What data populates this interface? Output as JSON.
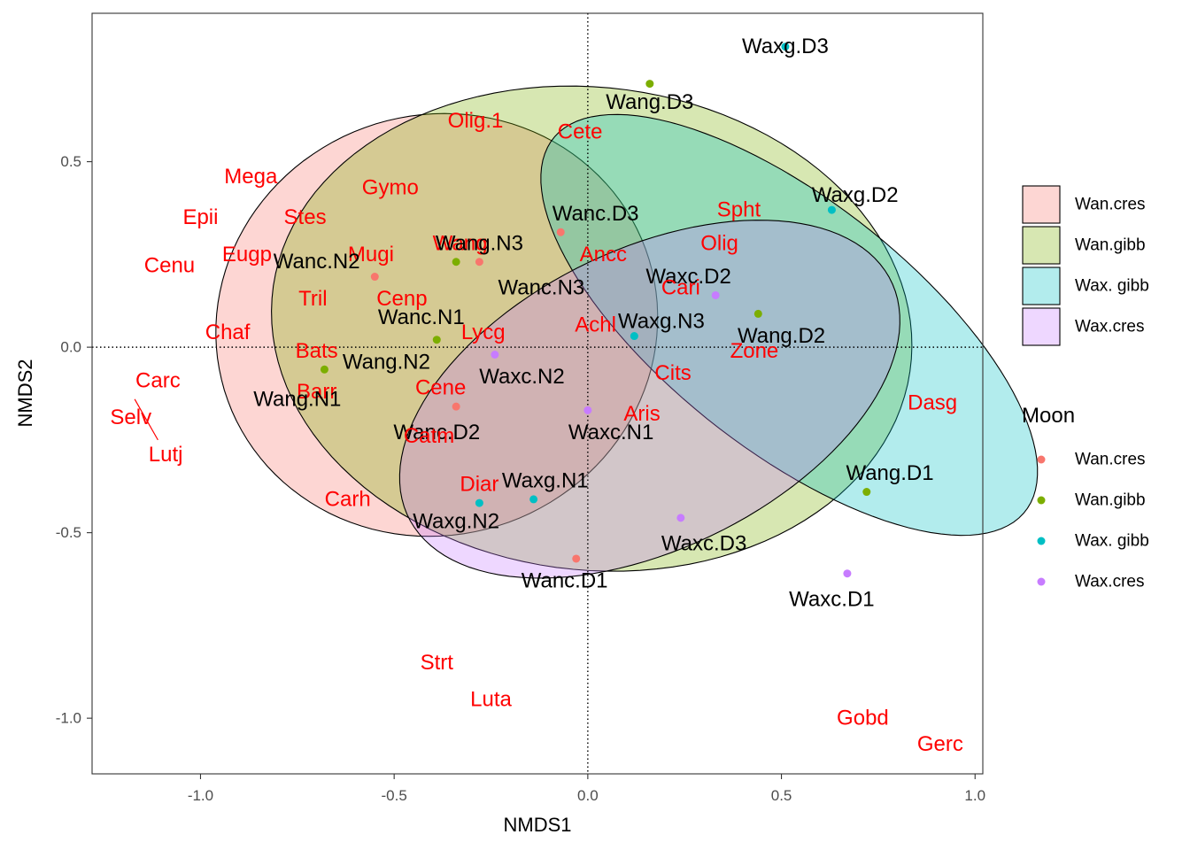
{
  "chart_data": {
    "type": "scatter",
    "xlabel": "NMDS1",
    "ylabel": "NMDS2",
    "xlim": [
      -1.28,
      1.02
    ],
    "ylim": [
      -1.15,
      0.9
    ],
    "x_ticks": [
      -1.0,
      -0.5,
      0.0,
      0.5,
      1.0
    ],
    "x_tick_labels": [
      "-1.0",
      "-0.5",
      "0.0",
      "0.5",
      "1.0"
    ],
    "y_ticks": [
      -1.0,
      -0.5,
      0.0,
      0.5
    ],
    "y_tick_labels": [
      "-1.0",
      "-0.5",
      "0.0",
      "0.5"
    ],
    "reference_lines": {
      "x": 0,
      "y": 0,
      "style": "dotted"
    },
    "grid": false,
    "groups": [
      {
        "name": "Wan.cres",
        "color": "#F8766D",
        "ellipse": {
          "cx": -0.39,
          "cy": 0.06,
          "rx": 0.56,
          "ry": 0.58,
          "angle_deg": -46
        },
        "points": [
          {
            "label": "Wanc.D3",
            "x": -0.07,
            "y": 0.31
          },
          {
            "label": "Wanc.N3",
            "x": -0.28,
            "y": 0.23
          },
          {
            "label": "Wanc.N2",
            "x": -0.55,
            "y": 0.19
          },
          {
            "label": "Wanc.D2",
            "x": -0.34,
            "y": -0.16
          },
          {
            "label": "Wanc.D1",
            "x": -0.03,
            "y": -0.57
          }
        ]
      },
      {
        "name": "Wan.gibb",
        "color": "#7CAE00",
        "ellipse": {
          "cx": 0.01,
          "cy": 0.05,
          "rx": 0.83,
          "ry": 0.65,
          "angle_deg": -8
        },
        "points": [
          {
            "label": "Wang.D3",
            "x": 0.16,
            "y": 0.71
          },
          {
            "label": "Wang.N3",
            "x": -0.34,
            "y": 0.23
          },
          {
            "label": "Wanc.N1",
            "x": -0.39,
            "y": 0.02
          },
          {
            "label": "Wang.N2",
            "x": -0.68,
            "y": -0.06
          },
          {
            "label": "Wang.D2",
            "x": 0.44,
            "y": 0.09
          },
          {
            "label": "Wang.D1",
            "x": 0.72,
            "y": -0.39
          }
        ]
      },
      {
        "name": "Wax. gibb",
        "color": "#00BFC4",
        "ellipse": {
          "cx": 0.52,
          "cy": 0.06,
          "rx": 0.79,
          "ry": 0.33,
          "angle_deg": -40
        },
        "points": [
          {
            "label": "Waxg.D3",
            "x": 0.51,
            "y": 0.81
          },
          {
            "label": "Waxg.D2",
            "x": 0.63,
            "y": 0.37
          },
          {
            "label": "Waxg.N3",
            "x": 0.12,
            "y": 0.03
          },
          {
            "label": "Waxg.N1",
            "x": -0.14,
            "y": -0.41
          },
          {
            "label": "Waxg.N2",
            "x": -0.28,
            "y": -0.42
          }
        ]
      },
      {
        "name": "Wax.cres",
        "color": "#C77CFF",
        "ellipse": {
          "cx": 0.16,
          "cy": -0.14,
          "rx": 0.7,
          "ry": 0.4,
          "angle_deg": 28
        },
        "points": [
          {
            "label": "Waxc.D2",
            "x": 0.33,
            "y": 0.14
          },
          {
            "label": "Waxc.N2",
            "x": -0.24,
            "y": -0.02
          },
          {
            "label": "Waxc.N1",
            "x": 0.0,
            "y": -0.17
          },
          {
            "label": "Waxc.D3",
            "x": 0.24,
            "y": -0.46
          },
          {
            "label": "Waxc.D1",
            "x": 0.67,
            "y": -0.61
          }
        ]
      }
    ],
    "species": [
      {
        "label": "Waxg.D3",
        "x": 0.51,
        "y": 0.81
      },
      {
        "label": "Olig.1",
        "x": -0.29,
        "y": 0.61
      },
      {
        "label": "Cete",
        "x": -0.02,
        "y": 0.58
      },
      {
        "label": "Wang.D3",
        "x": 0.16,
        "y": 0.66
      },
      {
        "label": "Mega",
        "x": -0.87,
        "y": 0.46
      },
      {
        "label": "Gymo",
        "x": -0.51,
        "y": 0.43
      },
      {
        "label": "Waxg.D2",
        "x": 0.69,
        "y": 0.41
      },
      {
        "label": "Epii",
        "x": -1.0,
        "y": 0.35
      },
      {
        "label": "Stes",
        "x": -0.73,
        "y": 0.35
      },
      {
        "label": "Spht",
        "x": 0.39,
        "y": 0.37
      },
      {
        "label": "Wanc.D3",
        "x": 0.02,
        "y": 0.36
      },
      {
        "label": "Wang",
        "x": -0.33,
        "y": 0.28
      },
      {
        "label": "Wang.N3",
        "x": -0.28,
        "y": 0.28
      },
      {
        "label": "Mugi",
        "x": -0.56,
        "y": 0.25
      },
      {
        "label": "Olig",
        "x": 0.34,
        "y": 0.28
      },
      {
        "label": "Eugp",
        "x": -0.88,
        "y": 0.25
      },
      {
        "label": "Wanc.N2",
        "x": -0.7,
        "y": 0.23
      },
      {
        "label": "Ancc",
        "x": 0.04,
        "y": 0.25
      },
      {
        "label": "Cenu",
        "x": -1.08,
        "y": 0.22
      },
      {
        "label": "Waxc.D2",
        "x": 0.26,
        "y": 0.19
      },
      {
        "label": "Wanc.N3",
        "x": -0.12,
        "y": 0.16
      },
      {
        "label": "Cari",
        "x": 0.24,
        "y": 0.16
      },
      {
        "label": "Tril",
        "x": -0.71,
        "y": 0.13
      },
      {
        "label": "Cenp",
        "x": -0.48,
        "y": 0.13
      },
      {
        "label": "Wanc.N1",
        "x": -0.43,
        "y": 0.08
      },
      {
        "label": "Waxg.N3",
        "x": 0.19,
        "y": 0.07
      },
      {
        "label": "Achl",
        "x": 0.02,
        "y": 0.06
      },
      {
        "label": "Chaf",
        "x": -0.93,
        "y": 0.04
      },
      {
        "label": "Lycg",
        "x": -0.27,
        "y": 0.04
      },
      {
        "label": "Wang.D2",
        "x": 0.5,
        "y": 0.03
      },
      {
        "label": "Bats",
        "x": -0.7,
        "y": -0.01
      },
      {
        "label": "Zone",
        "x": 0.43,
        "y": -0.01
      },
      {
        "label": "Wang.N2",
        "x": -0.52,
        "y": -0.04
      },
      {
        "label": "Cits",
        "x": 0.22,
        "y": -0.07
      },
      {
        "label": "Waxc.N2",
        "x": -0.17,
        "y": -0.08
      },
      {
        "label": "Carc",
        "x": -1.11,
        "y": -0.09
      },
      {
        "label": "Cene",
        "x": -0.38,
        "y": -0.11
      },
      {
        "label": "Barr",
        "x": -0.7,
        "y": -0.12
      },
      {
        "label": "Wang.N1",
        "x": -0.75,
        "y": -0.14
      },
      {
        "label": "Dasg",
        "x": 0.89,
        "y": -0.15
      },
      {
        "label": "Aris",
        "x": 0.14,
        "y": -0.18
      },
      {
        "label": "Selv",
        "x": -1.18,
        "y": -0.19
      },
      {
        "label": "Wanc.D2",
        "x": -0.39,
        "y": -0.23
      },
      {
        "label": "Catm",
        "x": -0.41,
        "y": -0.24
      },
      {
        "label": "Waxc.N1",
        "x": 0.06,
        "y": -0.23
      },
      {
        "label": "Lutj",
        "x": -1.09,
        "y": -0.29
      },
      {
        "label": "Wang.D1",
        "x": 0.78,
        "y": -0.34
      },
      {
        "label": "Diar",
        "x": -0.28,
        "y": -0.37
      },
      {
        "label": "Waxg.N1",
        "x": -0.11,
        "y": -0.36
      },
      {
        "label": "Carh",
        "x": -0.62,
        "y": -0.41
      },
      {
        "label": "Waxg.N2",
        "x": -0.34,
        "y": -0.47
      },
      {
        "label": "Waxc.D3",
        "x": 0.3,
        "y": -0.53
      },
      {
        "label": "Wanc.D1",
        "x": -0.06,
        "y": -0.63
      },
      {
        "label": "Waxc.D1",
        "x": 0.63,
        "y": -0.68
      },
      {
        "label": "Strt",
        "x": -0.39,
        "y": -0.85
      },
      {
        "label": "Luta",
        "x": -0.25,
        "y": -0.95
      },
      {
        "label": "Gobd",
        "x": 0.71,
        "y": -1.0
      },
      {
        "label": "Gerc",
        "x": 0.91,
        "y": -1.07
      }
    ],
    "species_label_color": "#FF0000",
    "site_label_color": "#000000",
    "segments": [
      {
        "from": {
          "x": -1.17,
          "y": -0.14
        },
        "to": {
          "x": -1.11,
          "y": -0.25
        }
      }
    ],
    "legend": {
      "placement": "right",
      "fill_entries": [
        "Wan.cres",
        "Wan.gibb",
        "Wax. gibb",
        "Wax.cres"
      ],
      "point_title": "Moon",
      "point_entries": [
        "Wan.cres",
        "Wan.gibb",
        "Wax. gibb",
        "Wax.cres"
      ]
    }
  }
}
